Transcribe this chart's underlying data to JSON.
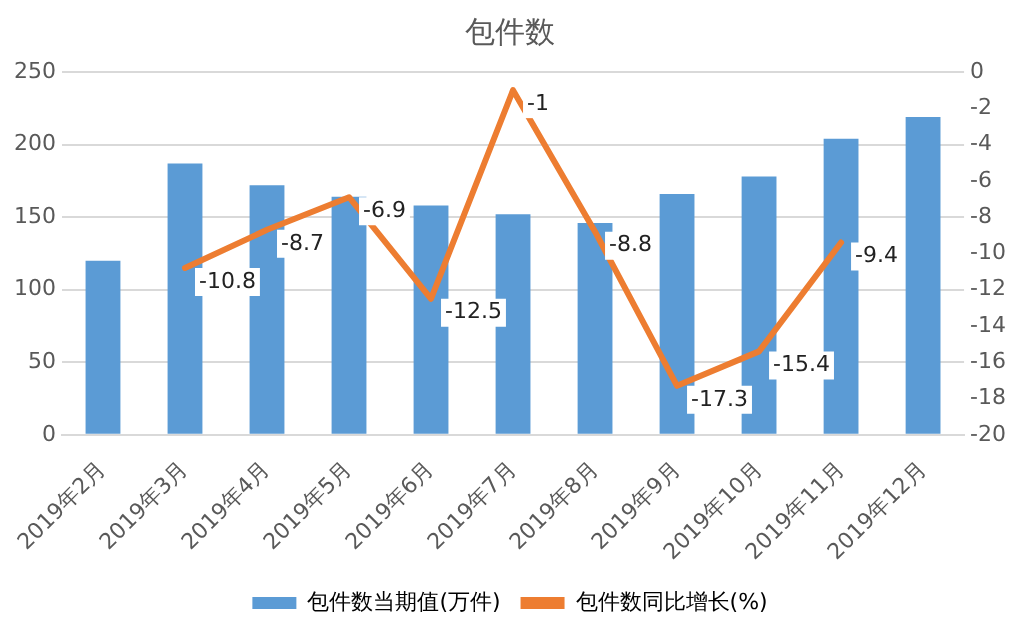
{
  "chart_data": {
    "type": "bar",
    "title": "包件数",
    "categories": [
      "2019年2月",
      "2019年3月",
      "2019年4月",
      "2019年5月",
      "2019年6月",
      "2019年7月",
      "2019年8月",
      "2019年9月",
      "2019年10月",
      "2019年11月",
      "2019年12月"
    ],
    "series": [
      {
        "name": "包件数当期值(万件)",
        "color": "#5b9bd5",
        "values": [
          120,
          187,
          172,
          164,
          158,
          152,
          146,
          166,
          178,
          204,
          219
        ]
      },
      {
        "name": "包件数同比增长(%)",
        "type": "line",
        "axis": "y2",
        "color": "#ed7d31",
        "values": [
          null,
          -10.8,
          -8.7,
          -6.9,
          -12.5,
          -1,
          -8.8,
          -17.3,
          -15.4,
          -9.4,
          null
        ],
        "value_labels": [
          null,
          "-10.8",
          "-8.7",
          "-6.9",
          "-12.5",
          "-1",
          "-8.8",
          "-17.3",
          "-15.4",
          "-9.4",
          null
        ]
      }
    ],
    "ylim": [
      0,
      250
    ],
    "yticks": [
      0,
      50,
      100,
      150,
      200,
      250
    ],
    "y2lim": [
      -20,
      0
    ],
    "y2ticks": [
      -20,
      -18,
      -16,
      -14,
      -12,
      -10,
      -8,
      -6,
      -4,
      -2,
      0
    ],
    "grid": "y",
    "legend": "bottom",
    "marker": "none"
  }
}
